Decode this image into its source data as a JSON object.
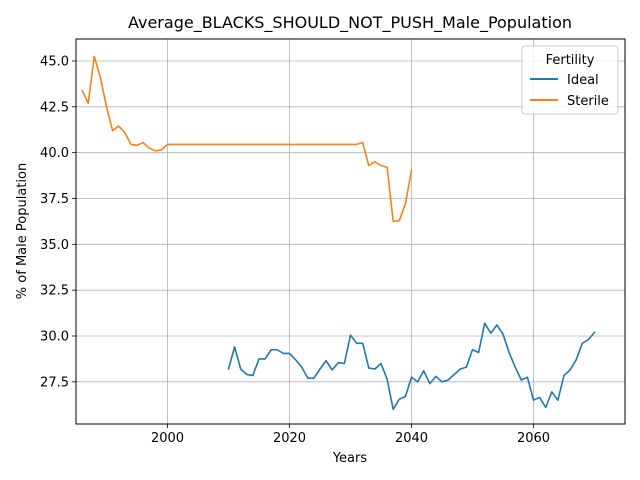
{
  "chart_data": {
    "type": "line",
    "title": "Average_BLACKS_SHOULD_NOT_PUSH_Male_Population",
    "xlabel": "Years",
    "ylabel": "% of Male Population",
    "xlim": [
      1985,
      2075
    ],
    "ylim": [
      25.2,
      46.2
    ],
    "x_ticks": [
      2000,
      2020,
      2040,
      2060
    ],
    "y_ticks": [
      27.5,
      30.0,
      32.5,
      35.0,
      37.5,
      40.0,
      42.5,
      45.0
    ],
    "y_tick_labels": [
      "27.5",
      "30.0",
      "32.5",
      "35.0",
      "37.5",
      "40.0",
      "42.5",
      "45.0"
    ],
    "grid": true,
    "legend": {
      "title": "Fertility",
      "placement": "top-right"
    },
    "series": [
      {
        "name": "Ideal",
        "color": "#1f77b4",
        "x": [
          2010,
          2011,
          2012,
          2013,
          2014,
          2015,
          2016,
          2017,
          2018,
          2019,
          2020,
          2021,
          2022,
          2023,
          2024,
          2025,
          2026,
          2027,
          2028,
          2029,
          2030,
          2031,
          2032,
          2033,
          2034,
          2035,
          2036,
          2037,
          2038,
          2039,
          2040,
          2041,
          2042,
          2043,
          2044,
          2045,
          2046,
          2047,
          2048,
          2049,
          2050,
          2051,
          2052,
          2053,
          2054,
          2055,
          2056,
          2057,
          2058,
          2059,
          2060,
          2061,
          2062,
          2063,
          2064,
          2065,
          2066,
          2067,
          2068,
          2069,
          2070
        ],
        "y": [
          28.2,
          29.4,
          28.2,
          27.9,
          27.85,
          28.75,
          28.75,
          29.25,
          29.25,
          29.05,
          29.05,
          28.7,
          28.3,
          27.7,
          27.7,
          28.2,
          28.65,
          28.15,
          28.55,
          28.5,
          30.05,
          29.6,
          29.6,
          28.25,
          28.2,
          28.5,
          27.65,
          26.0,
          26.55,
          26.7,
          27.75,
          27.5,
          28.1,
          27.4,
          27.8,
          27.5,
          27.6,
          27.9,
          28.2,
          28.3,
          29.25,
          29.1,
          30.7,
          30.15,
          30.6,
          30.1,
          29.1,
          28.3,
          27.6,
          27.75,
          26.5,
          26.65,
          26.1,
          26.95,
          26.5,
          27.85,
          28.15,
          28.7,
          29.6,
          29.8,
          30.2
        ]
      },
      {
        "name": "Sterile",
        "color": "#ff7f0e",
        "x": [
          1986,
          1987,
          1988,
          1989,
          1990,
          1991,
          1992,
          1993,
          1994,
          1995,
          1996,
          1997,
          1998,
          1999,
          2000,
          2001,
          2002,
          2003,
          2004,
          2005,
          2006,
          2007,
          2008,
          2009,
          2010,
          2011,
          2012,
          2013,
          2014,
          2015,
          2016,
          2017,
          2018,
          2019,
          2020,
          2021,
          2022,
          2023,
          2024,
          2025,
          2026,
          2027,
          2028,
          2029,
          2030,
          2031,
          2032,
          2033,
          2034,
          2035,
          2036,
          2037,
          2038,
          2039,
          2040
        ],
        "y": [
          43.4,
          42.7,
          45.25,
          44.1,
          42.5,
          41.2,
          41.45,
          41.1,
          40.45,
          40.4,
          40.55,
          40.25,
          40.1,
          40.15,
          40.45,
          40.45,
          40.45,
          40.45,
          40.45,
          40.45,
          40.45,
          40.45,
          40.45,
          40.45,
          40.45,
          40.45,
          40.45,
          40.45,
          40.45,
          40.45,
          40.45,
          40.45,
          40.45,
          40.45,
          40.45,
          40.45,
          40.45,
          40.45,
          40.45,
          40.45,
          40.45,
          40.45,
          40.45,
          40.45,
          40.45,
          40.45,
          40.55,
          39.3,
          39.5,
          39.3,
          39.2,
          36.25,
          36.3,
          37.2,
          39.05
        ]
      }
    ]
  }
}
